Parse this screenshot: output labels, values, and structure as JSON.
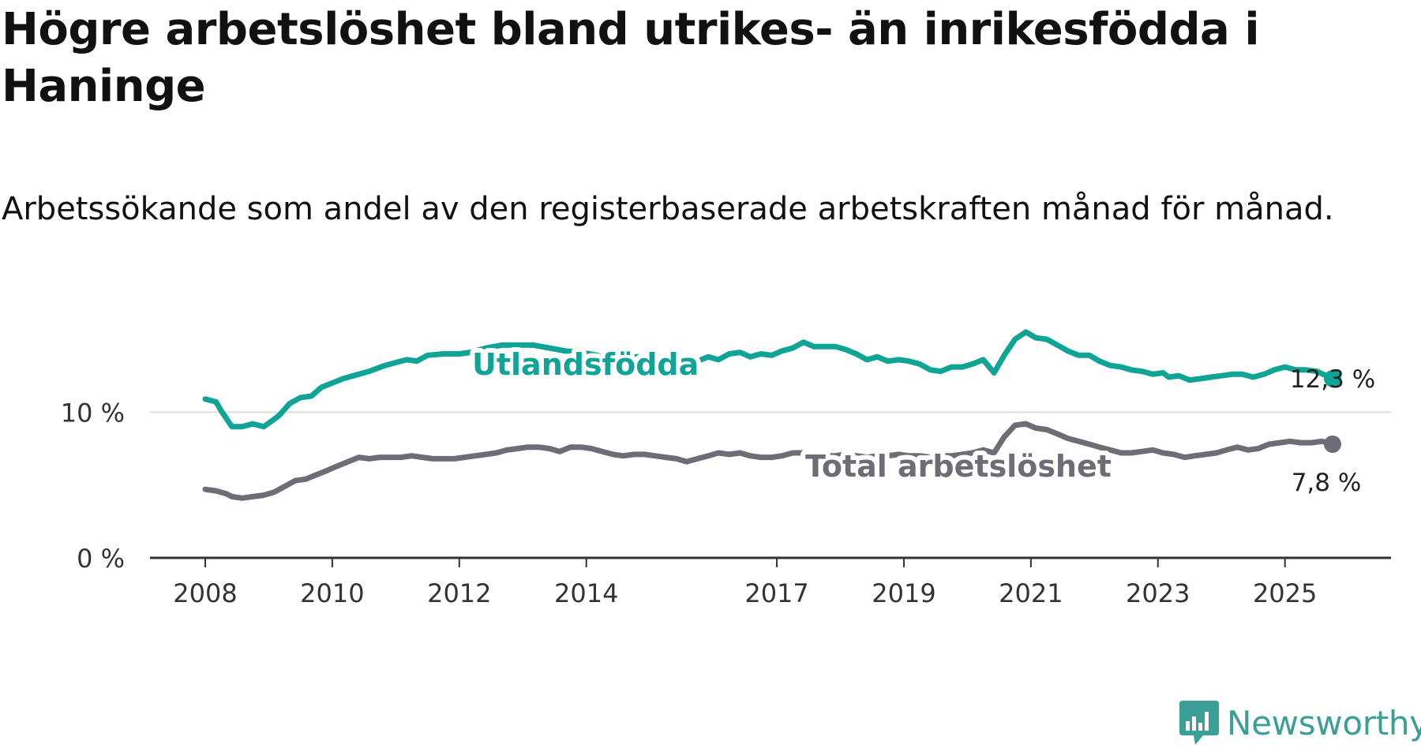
{
  "title": "Högre arbetslöshet bland utrikes- än inrikesfödda i Haninge",
  "subtitle": "Arbetssökande som andel av den registerbaserade arbetskraften månad för månad.",
  "brand": {
    "name": "Newsworthy",
    "color": "#3aa096",
    "icon": "bar-chart-bubble-icon"
  },
  "colors": {
    "utlandsfodda": "#10a496",
    "total": "#6e6c75",
    "grid": "#dddddd",
    "axis": "#333333"
  },
  "chart_data": {
    "type": "line",
    "title": "Högre arbetslöshet bland utrikes- än inrikesfödda i Haninge",
    "xlabel": "",
    "ylabel": "",
    "x_range": [
      2008.0,
      2025.75
    ],
    "ylim": [
      0,
      15
    ],
    "y_ticks": [
      {
        "value": 0,
        "label": "0 %"
      },
      {
        "value": 10,
        "label": "10 %"
      }
    ],
    "x_ticks": [
      {
        "value": 2008,
        "label": "2008"
      },
      {
        "value": 2010,
        "label": "2010"
      },
      {
        "value": 2012,
        "label": "2012"
      },
      {
        "value": 2014,
        "label": "2014"
      },
      {
        "value": 2017,
        "label": "2017"
      },
      {
        "value": 2019,
        "label": "2019"
      },
      {
        "value": 2021,
        "label": "2021"
      },
      {
        "value": 2023,
        "label": "2023"
      },
      {
        "value": 2025,
        "label": "2025"
      }
    ],
    "grid": true,
    "series": [
      {
        "name": "Utlandsfödda",
        "color": "#10a496",
        "end_label": "12,3 %",
        "points": [
          [
            2008.0,
            10.9
          ],
          [
            2008.17,
            10.7
          ],
          [
            2008.25,
            10.1
          ],
          [
            2008.42,
            9.0
          ],
          [
            2008.58,
            9.0
          ],
          [
            2008.75,
            9.2
          ],
          [
            2008.92,
            9.0
          ],
          [
            2009.08,
            9.5
          ],
          [
            2009.17,
            9.8
          ],
          [
            2009.33,
            10.6
          ],
          [
            2009.5,
            11.0
          ],
          [
            2009.67,
            11.1
          ],
          [
            2009.83,
            11.7
          ],
          [
            2010.0,
            12.0
          ],
          [
            2010.17,
            12.3
          ],
          [
            2010.33,
            12.5
          ],
          [
            2010.58,
            12.8
          ],
          [
            2010.83,
            13.2
          ],
          [
            2011.0,
            13.4
          ],
          [
            2011.17,
            13.6
          ],
          [
            2011.33,
            13.5
          ],
          [
            2011.5,
            13.9
          ],
          [
            2011.75,
            14.0
          ],
          [
            2012.0,
            14.0
          ],
          [
            2012.17,
            14.1
          ],
          [
            2012.42,
            14.4
          ],
          [
            2012.67,
            14.6
          ],
          [
            2012.92,
            14.6
          ],
          [
            2013.17,
            14.6
          ],
          [
            2013.42,
            14.4
          ],
          [
            2013.67,
            14.2
          ],
          [
            2013.92,
            14.1
          ],
          [
            2014.17,
            13.9
          ],
          [
            2014.42,
            13.5
          ],
          [
            2014.58,
            13.4
          ],
          [
            2014.75,
            13.8
          ],
          [
            2014.92,
            13.8
          ],
          [
            2015.08,
            13.9
          ],
          [
            2015.25,
            13.6
          ],
          [
            2015.42,
            13.4
          ],
          [
            2015.58,
            13.4
          ],
          [
            2015.75,
            13.5
          ],
          [
            2015.92,
            13.8
          ],
          [
            2016.08,
            13.6
          ],
          [
            2016.25,
            14.0
          ],
          [
            2016.42,
            14.1
          ],
          [
            2016.58,
            13.8
          ],
          [
            2016.75,
            14.0
          ],
          [
            2016.92,
            13.9
          ],
          [
            2017.08,
            14.2
          ],
          [
            2017.25,
            14.4
          ],
          [
            2017.42,
            14.8
          ],
          [
            2017.58,
            14.5
          ],
          [
            2017.75,
            14.5
          ],
          [
            2017.92,
            14.5
          ],
          [
            2018.08,
            14.3
          ],
          [
            2018.25,
            14.0
          ],
          [
            2018.42,
            13.6
          ],
          [
            2018.58,
            13.8
          ],
          [
            2018.75,
            13.5
          ],
          [
            2018.92,
            13.6
          ],
          [
            2019.08,
            13.5
          ],
          [
            2019.25,
            13.3
          ],
          [
            2019.42,
            12.9
          ],
          [
            2019.58,
            12.8
          ],
          [
            2019.75,
            13.1
          ],
          [
            2019.92,
            13.1
          ],
          [
            2020.08,
            13.3
          ],
          [
            2020.25,
            13.6
          ],
          [
            2020.42,
            12.7
          ],
          [
            2020.58,
            13.9
          ],
          [
            2020.75,
            15.0
          ],
          [
            2020.92,
            15.5
          ],
          [
            2021.08,
            15.1
          ],
          [
            2021.25,
            15.0
          ],
          [
            2021.42,
            14.6
          ],
          [
            2021.58,
            14.2
          ],
          [
            2021.75,
            13.9
          ],
          [
            2021.92,
            13.9
          ],
          [
            2022.08,
            13.5
          ],
          [
            2022.25,
            13.2
          ],
          [
            2022.42,
            13.1
          ],
          [
            2022.58,
            12.9
          ],
          [
            2022.75,
            12.8
          ],
          [
            2022.92,
            12.6
          ],
          [
            2023.08,
            12.7
          ],
          [
            2023.17,
            12.4
          ],
          [
            2023.33,
            12.5
          ],
          [
            2023.5,
            12.2
          ],
          [
            2023.67,
            12.3
          ],
          [
            2023.83,
            12.4
          ],
          [
            2024.0,
            12.5
          ],
          [
            2024.17,
            12.6
          ],
          [
            2024.33,
            12.6
          ],
          [
            2024.5,
            12.4
          ],
          [
            2024.67,
            12.6
          ],
          [
            2024.83,
            12.9
          ],
          [
            2025.0,
            13.1
          ],
          [
            2025.17,
            12.9
          ],
          [
            2025.33,
            12.9
          ],
          [
            2025.5,
            12.8
          ],
          [
            2025.75,
            12.3
          ]
        ]
      },
      {
        "name": "Total arbetslöshet",
        "color": "#6e6c75",
        "end_label": "7,8 %",
        "points": [
          [
            2008.0,
            4.7
          ],
          [
            2008.17,
            4.6
          ],
          [
            2008.33,
            4.4
          ],
          [
            2008.42,
            4.2
          ],
          [
            2008.58,
            4.1
          ],
          [
            2008.75,
            4.2
          ],
          [
            2008.92,
            4.3
          ],
          [
            2009.08,
            4.5
          ],
          [
            2009.25,
            4.9
          ],
          [
            2009.42,
            5.3
          ],
          [
            2009.58,
            5.4
          ],
          [
            2009.75,
            5.7
          ],
          [
            2009.92,
            6.0
          ],
          [
            2010.08,
            6.3
          ],
          [
            2010.25,
            6.6
          ],
          [
            2010.42,
            6.9
          ],
          [
            2010.58,
            6.8
          ],
          [
            2010.75,
            6.9
          ],
          [
            2010.92,
            6.9
          ],
          [
            2011.08,
            6.9
          ],
          [
            2011.25,
            7.0
          ],
          [
            2011.42,
            6.9
          ],
          [
            2011.58,
            6.8
          ],
          [
            2011.75,
            6.8
          ],
          [
            2011.92,
            6.8
          ],
          [
            2012.08,
            6.9
          ],
          [
            2012.25,
            7.0
          ],
          [
            2012.42,
            7.1
          ],
          [
            2012.58,
            7.2
          ],
          [
            2012.75,
            7.4
          ],
          [
            2012.92,
            7.5
          ],
          [
            2013.08,
            7.6
          ],
          [
            2013.25,
            7.6
          ],
          [
            2013.42,
            7.5
          ],
          [
            2013.58,
            7.3
          ],
          [
            2013.75,
            7.6
          ],
          [
            2013.92,
            7.6
          ],
          [
            2014.08,
            7.5
          ],
          [
            2014.25,
            7.3
          ],
          [
            2014.42,
            7.1
          ],
          [
            2014.58,
            7.0
          ],
          [
            2014.75,
            7.1
          ],
          [
            2014.92,
            7.1
          ],
          [
            2015.08,
            7.0
          ],
          [
            2015.25,
            6.9
          ],
          [
            2015.42,
            6.8
          ],
          [
            2015.58,
            6.6
          ],
          [
            2015.75,
            6.8
          ],
          [
            2015.92,
            7.0
          ],
          [
            2016.08,
            7.2
          ],
          [
            2016.25,
            7.1
          ],
          [
            2016.42,
            7.2
          ],
          [
            2016.58,
            7.0
          ],
          [
            2016.75,
            6.9
          ],
          [
            2016.92,
            6.9
          ],
          [
            2017.08,
            7.0
          ],
          [
            2017.25,
            7.2
          ],
          [
            2017.42,
            7.2
          ],
          [
            2017.58,
            7.0
          ],
          [
            2017.75,
            7.0
          ],
          [
            2017.92,
            7.0
          ],
          [
            2018.08,
            7.1
          ],
          [
            2018.25,
            7.0
          ],
          [
            2018.42,
            6.9
          ],
          [
            2018.58,
            7.0
          ],
          [
            2018.75,
            7.0
          ],
          [
            2018.92,
            7.1
          ],
          [
            2019.08,
            7.0
          ],
          [
            2019.25,
            7.0
          ],
          [
            2019.42,
            6.9
          ],
          [
            2019.58,
            7.0
          ],
          [
            2019.75,
            7.0
          ],
          [
            2019.92,
            7.1
          ],
          [
            2020.08,
            7.2
          ],
          [
            2020.25,
            7.4
          ],
          [
            2020.42,
            7.2
          ],
          [
            2020.58,
            8.3
          ],
          [
            2020.75,
            9.1
          ],
          [
            2020.92,
            9.2
          ],
          [
            2021.08,
            8.9
          ],
          [
            2021.25,
            8.8
          ],
          [
            2021.42,
            8.5
          ],
          [
            2021.58,
            8.2
          ],
          [
            2021.75,
            8.0
          ],
          [
            2021.92,
            7.8
          ],
          [
            2022.08,
            7.6
          ],
          [
            2022.25,
            7.4
          ],
          [
            2022.42,
            7.2
          ],
          [
            2022.58,
            7.2
          ],
          [
            2022.75,
            7.3
          ],
          [
            2022.92,
            7.4
          ],
          [
            2023.08,
            7.2
          ],
          [
            2023.25,
            7.1
          ],
          [
            2023.42,
            6.9
          ],
          [
            2023.58,
            7.0
          ],
          [
            2023.75,
            7.1
          ],
          [
            2023.92,
            7.2
          ],
          [
            2024.08,
            7.4
          ],
          [
            2024.25,
            7.6
          ],
          [
            2024.42,
            7.4
          ],
          [
            2024.58,
            7.5
          ],
          [
            2024.75,
            7.8
          ],
          [
            2024.92,
            7.9
          ],
          [
            2025.08,
            8.0
          ],
          [
            2025.25,
            7.9
          ],
          [
            2025.42,
            7.9
          ],
          [
            2025.58,
            8.0
          ],
          [
            2025.75,
            7.8
          ]
        ]
      }
    ]
  }
}
